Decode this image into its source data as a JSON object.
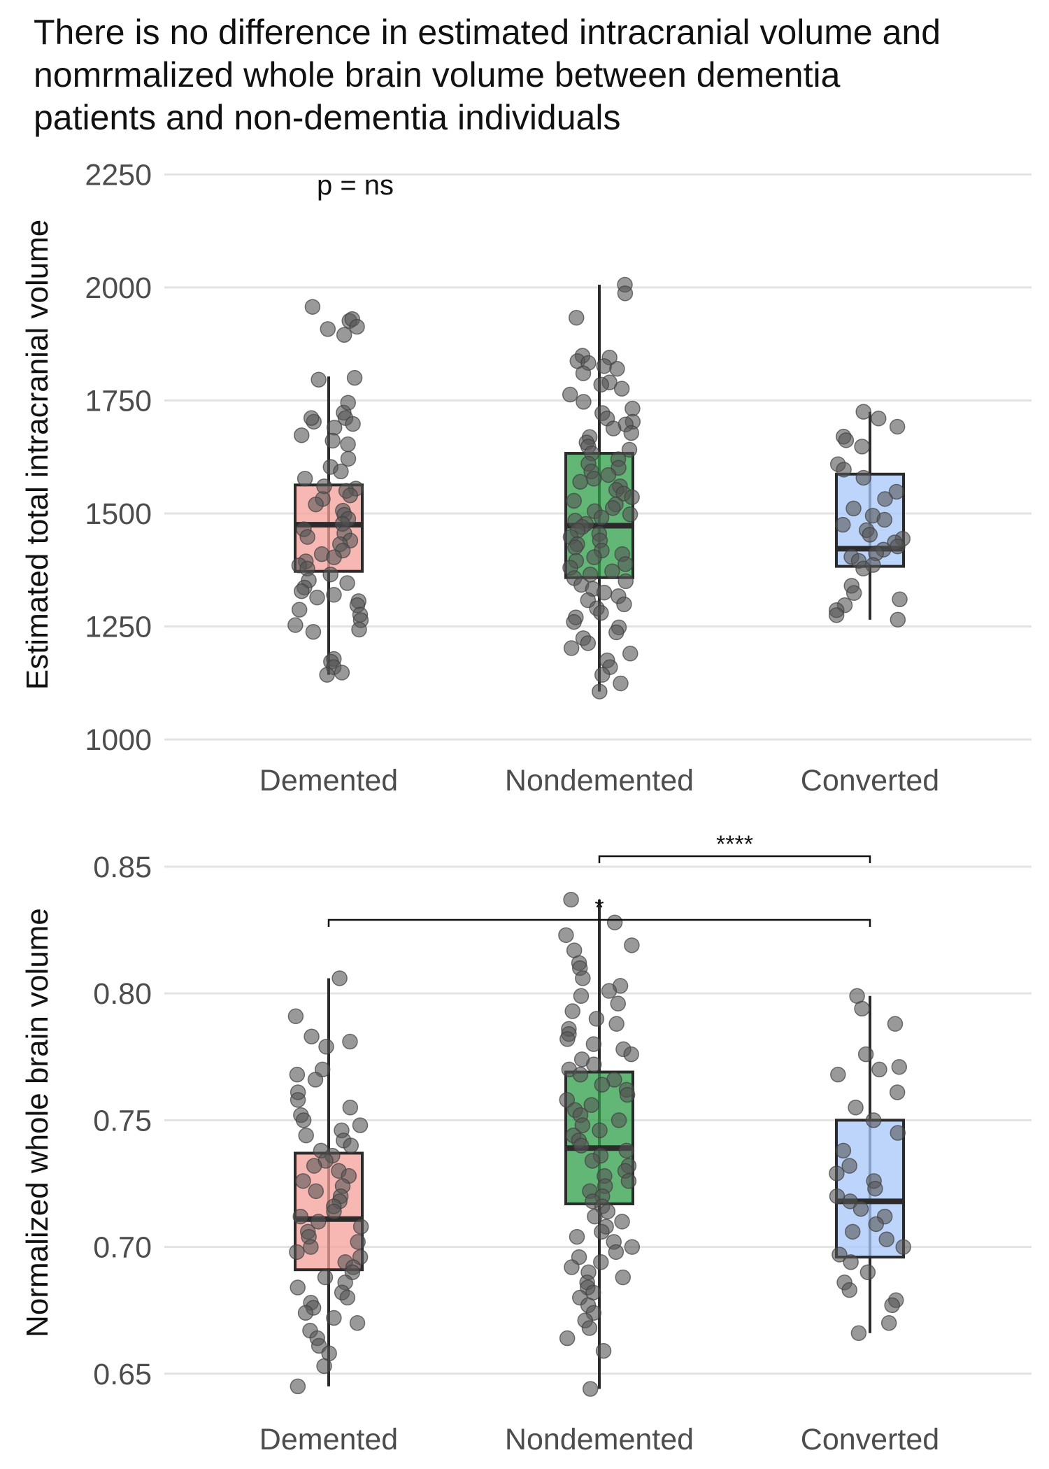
{
  "chart_data": [
    {
      "type": "box",
      "title": "There is no difference in estimated intracranial volume and nomrmalized whole brain volume between dementia patients and non-dementia individuals",
      "title_lines": [
        "There is no difference in estimated intracranial volume and",
        "nomrmalized whole brain volume between dementia",
        "patients and non-dementia individuals"
      ],
      "xlabel": "",
      "ylabel": "Estimated total intracranial volume",
      "ylim": [
        980,
        2280
      ],
      "yticks": [
        "1000",
        "1250",
        "1500",
        "1750",
        "2000",
        "2250"
      ],
      "categories": [
        "Demented",
        "Nondemented",
        "Converted"
      ],
      "colors": [
        "#f4a09b",
        "#2e9e48",
        "#a7c6fa"
      ],
      "box_stats": [
        {
          "min": 1143,
          "q1": 1372,
          "median": 1475,
          "q3": 1563,
          "max": 1803
        },
        {
          "min": 1106,
          "q1": 1358,
          "median": 1473,
          "q3": 1633,
          "max": 2006
        },
        {
          "min": 1265,
          "q1": 1383,
          "median": 1422,
          "q3": 1587,
          "max": 1725
        }
      ],
      "points": [
        [
          1926,
          1930,
          1895,
          1908,
          1957,
          1913,
          1800,
          1796,
          1723,
          1745,
          1711,
          1703,
          1690,
          1698,
          1711,
          1653,
          1673,
          1661,
          1603,
          1621,
          1593,
          1577,
          1555,
          1560,
          1550,
          1532,
          1540,
          1520,
          1506,
          1497,
          1488,
          1477,
          1465,
          1456,
          1448,
          1440,
          1432,
          1418,
          1410,
          1403,
          1394,
          1385,
          1378,
          1365,
          1352,
          1346,
          1336,
          1328,
          1320,
          1314,
          1306,
          1297,
          1287,
          1276,
          1264,
          1253,
          1243,
          1238,
          1178,
          1172,
          1160,
          1148,
          1143
        ],
        [
          2006,
          1987,
          1933,
          1849,
          1845,
          1837,
          1833,
          1826,
          1820,
          1810,
          1790,
          1785,
          1776,
          1763,
          1747,
          1732,
          1722,
          1710,
          1703,
          1697,
          1688,
          1678,
          1669,
          1657,
          1648,
          1641,
          1633,
          1620,
          1610,
          1601,
          1593,
          1585,
          1577,
          1570,
          1560,
          1552,
          1544,
          1536,
          1528,
          1520,
          1512,
          1505,
          1498,
          1491,
          1484,
          1477,
          1470,
          1462,
          1455,
          1448,
          1440,
          1432,
          1425,
          1418,
          1410,
          1403,
          1395,
          1388,
          1380,
          1372,
          1365,
          1357,
          1350,
          1342,
          1333,
          1325,
          1317,
          1308,
          1299,
          1290,
          1280,
          1270,
          1260,
          1248,
          1237,
          1224,
          1213,
          1202,
          1190,
          1175,
          1160,
          1143,
          1124,
          1106
        ],
        [
          1725,
          1710,
          1692,
          1670,
          1662,
          1648,
          1609,
          1597,
          1579,
          1548,
          1532,
          1511,
          1495,
          1486,
          1475,
          1463,
          1453,
          1444,
          1436,
          1427,
          1420,
          1412,
          1404,
          1395,
          1386,
          1378,
          1340,
          1324,
          1310,
          1297,
          1286,
          1275,
          1265
        ]
      ]
    },
    {
      "type": "box",
      "xlabel": "",
      "ylabel": "Normalized whole brain volume",
      "ylim": [
        0.64,
        0.858
      ],
      "yticks": [
        "0.65",
        "0.70",
        "0.75",
        "0.80",
        "0.85"
      ],
      "categories": [
        "Demented",
        "Nondemented",
        "Converted"
      ],
      "colors": [
        "#f4a09b",
        "#2e9e48",
        "#a7c6fa"
      ],
      "box_stats": [
        {
          "min": 0.645,
          "q1": 0.691,
          "median": 0.711,
          "q3": 0.737,
          "max": 0.806
        },
        {
          "min": 0.644,
          "q1": 0.717,
          "median": 0.739,
          "q3": 0.769,
          "max": 0.837
        },
        {
          "min": 0.666,
          "q1": 0.696,
          "median": 0.718,
          "q3": 0.75,
          "max": 0.799
        }
      ],
      "points": [
        [
          0.806,
          0.791,
          0.783,
          0.781,
          0.779,
          0.77,
          0.768,
          0.766,
          0.761,
          0.758,
          0.755,
          0.752,
          0.75,
          0.748,
          0.746,
          0.744,
          0.742,
          0.74,
          0.738,
          0.736,
          0.734,
          0.732,
          0.73,
          0.728,
          0.726,
          0.724,
          0.722,
          0.72,
          0.718,
          0.716,
          0.714,
          0.712,
          0.71,
          0.708,
          0.706,
          0.704,
          0.702,
          0.7,
          0.698,
          0.696,
          0.694,
          0.692,
          0.69,
          0.688,
          0.686,
          0.684,
          0.682,
          0.68,
          0.678,
          0.676,
          0.674,
          0.672,
          0.67,
          0.667,
          0.664,
          0.661,
          0.658,
          0.653,
          0.645
        ],
        [
          0.837,
          0.828,
          0.823,
          0.819,
          0.817,
          0.812,
          0.81,
          0.806,
          0.803,
          0.801,
          0.799,
          0.796,
          0.793,
          0.79,
          0.788,
          0.786,
          0.784,
          0.782,
          0.78,
          0.778,
          0.776,
          0.774,
          0.772,
          0.77,
          0.768,
          0.766,
          0.764,
          0.762,
          0.76,
          0.758,
          0.756,
          0.754,
          0.752,
          0.75,
          0.748,
          0.746,
          0.744,
          0.742,
          0.74,
          0.738,
          0.736,
          0.734,
          0.732,
          0.73,
          0.728,
          0.726,
          0.724,
          0.722,
          0.72,
          0.718,
          0.716,
          0.714,
          0.712,
          0.71,
          0.708,
          0.706,
          0.704,
          0.702,
          0.7,
          0.698,
          0.696,
          0.694,
          0.692,
          0.69,
          0.688,
          0.686,
          0.684,
          0.682,
          0.68,
          0.677,
          0.674,
          0.671,
          0.668,
          0.664,
          0.659,
          0.644
        ],
        [
          0.799,
          0.794,
          0.788,
          0.776,
          0.771,
          0.77,
          0.768,
          0.761,
          0.755,
          0.75,
          0.745,
          0.738,
          0.732,
          0.729,
          0.726,
          0.723,
          0.72,
          0.718,
          0.715,
          0.712,
          0.709,
          0.706,
          0.703,
          0.7,
          0.697,
          0.694,
          0.69,
          0.686,
          0.683,
          0.679,
          0.677,
          0.67,
          0.666
        ]
      ],
      "brackets": [
        {
          "from": "Nondemented",
          "to": "Converted",
          "label": "****"
        },
        {
          "from": "Demented",
          "to": "Converted",
          "label": "*"
        }
      ]
    }
  ],
  "annotations": {
    "top_panel_pvalue": "p = ns"
  }
}
